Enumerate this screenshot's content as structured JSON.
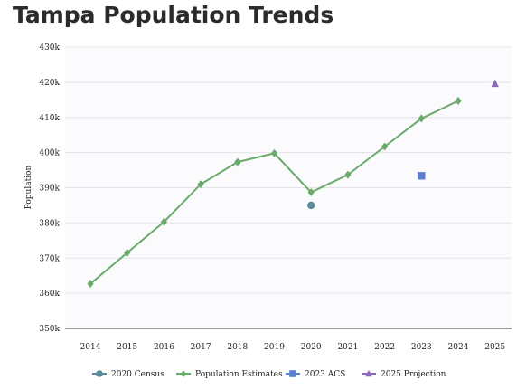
{
  "chart_data": {
    "type": "line",
    "title": "Tampa Population Trends",
    "ylabel": "Population",
    "xlabel": "",
    "ylim": [
      350000,
      430000
    ],
    "y_ticks": [
      "350k",
      "360k",
      "370k",
      "380k",
      "390k",
      "400k",
      "410k",
      "420k",
      "430k"
    ],
    "categories": [
      "2014",
      "2015",
      "2016",
      "2017",
      "2018",
      "2019",
      "2020",
      "2021",
      "2022",
      "2023",
      "2024",
      "2025"
    ],
    "grid": "horizontal",
    "legend_position": "bottom",
    "series": [
      {
        "name": "2020 Census",
        "marker": "circle",
        "color": "#5b8a9a",
        "points": [
          {
            "x": "2020",
            "y": 385000
          }
        ]
      },
      {
        "name": "Population Estimates",
        "marker": "diamond",
        "color": "#6aaa6a",
        "points": [
          {
            "x": "2014",
            "y": 362700
          },
          {
            "x": "2015",
            "y": 371500
          },
          {
            "x": "2016",
            "y": 380300
          },
          {
            "x": "2017",
            "y": 391000
          },
          {
            "x": "2018",
            "y": 397300
          },
          {
            "x": "2019",
            "y": 399800
          },
          {
            "x": "2020",
            "y": 388700
          },
          {
            "x": "2021",
            "y": 393700
          },
          {
            "x": "2022",
            "y": 401700
          },
          {
            "x": "2023",
            "y": 409700
          },
          {
            "x": "2024",
            "y": 414700
          }
        ]
      },
      {
        "name": "2023 ACS",
        "marker": "square",
        "color": "#5b7fd0",
        "points": [
          {
            "x": "2023",
            "y": 393400
          }
        ]
      },
      {
        "name": "2025 Projection",
        "marker": "triangle",
        "color": "#8a6ab8",
        "points": [
          {
            "x": "2025",
            "y": 419600
          }
        ]
      }
    ]
  }
}
